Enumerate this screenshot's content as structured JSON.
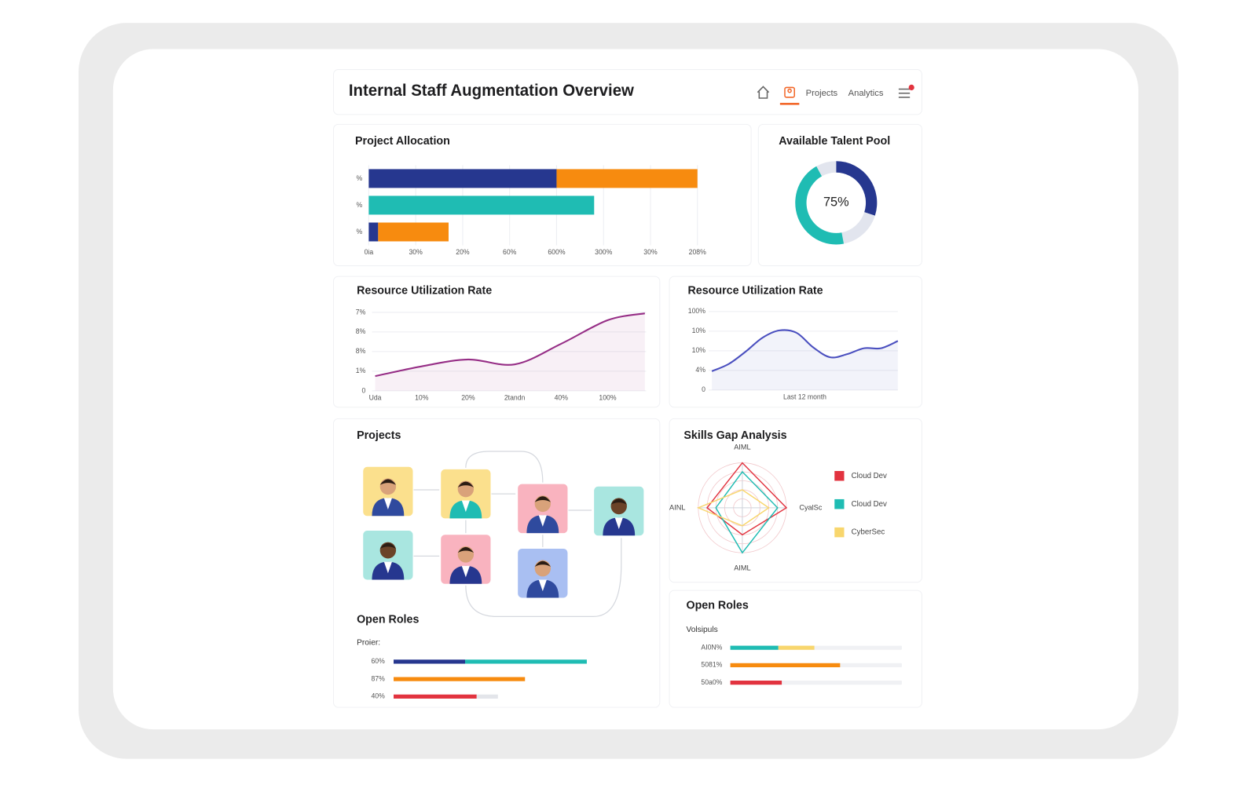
{
  "header": {
    "title": "Internal Staff Augmentation Overview",
    "nav": [
      "Projects",
      "Analytics"
    ]
  },
  "projects": {
    "title": "Projects"
  },
  "chart_data": [
    {
      "type": "bar",
      "orientation": "horizontal",
      "stacked": true,
      "title": "Project Allocation",
      "categories": [
        "%",
        "%",
        "%"
      ],
      "series": [
        {
          "color": "#26378f",
          "values": [
            40,
            null,
            2
          ]
        },
        {
          "color": "#1fbcb3",
          "values": [
            null,
            48,
            null
          ]
        },
        {
          "color": "#f78b0f",
          "values": [
            30,
            null,
            15
          ]
        }
      ],
      "xlim": [
        0,
        70
      ],
      "xticks": [
        {
          "value": 0,
          "label": "0ia"
        },
        {
          "value": 10,
          "label": "30%"
        },
        {
          "value": 20,
          "label": "20%"
        },
        {
          "value": 30,
          "label": "60%"
        },
        {
          "value": 40,
          "label": "600%"
        },
        {
          "value": 50,
          "label": "300%"
        },
        {
          "value": 60,
          "label": "30%"
        },
        {
          "value": 70,
          "label": "208%"
        }
      ],
      "grid": true
    },
    {
      "type": "donut",
      "title": "Available Talent Pool",
      "center_label": "75%",
      "values": [
        30,
        17,
        45,
        8
      ],
      "colors": [
        "#26378f",
        "#e2e5ee",
        "#1fbcb3",
        "#e2e5ee"
      ]
    },
    {
      "type": "line",
      "title": "Resource Utilization Rate",
      "x": [
        0,
        1,
        2,
        3,
        4,
        5,
        5.8
      ],
      "series": [
        {
          "color": "#962e86",
          "values": [
            0.75,
            1.25,
            1.6,
            1.35,
            2.4,
            3.6,
            3.95
          ]
        }
      ],
      "xlim": [
        0,
        6
      ],
      "xticks": [
        {
          "value": 0,
          "label": "Uda"
        },
        {
          "value": 1,
          "label": "10%"
        },
        {
          "value": 2,
          "label": "20%"
        },
        {
          "value": 3,
          "label": "2tandn"
        },
        {
          "value": 4,
          "label": "40%"
        },
        {
          "value": 5,
          "label": "100%"
        }
      ],
      "ylim": [
        0,
        4
      ],
      "yticks": [
        0,
        {
          "value": 1,
          "label": "1%"
        },
        {
          "value": 2,
          "label": "8%"
        },
        {
          "value": 3,
          "label": "8%"
        },
        {
          "value": 4,
          "label": "7%"
        }
      ],
      "grid": true,
      "area": true
    },
    {
      "type": "line",
      "title": "Resource Utilization Rate",
      "xlabel": "Last 12 month",
      "x": [
        0,
        1,
        2,
        3,
        4,
        5,
        6,
        7,
        8,
        9,
        10,
        11
      ],
      "series": [
        {
          "color": "#4a4fbf",
          "values": [
            0.96,
            1.33,
            1.96,
            2.67,
            3.04,
            2.92,
            2.17,
            1.67,
            1.83,
            2.13,
            2.13,
            2.5
          ]
        }
      ],
      "xlim": [
        0,
        11
      ],
      "ylim": [
        0,
        4
      ],
      "yticks": [
        0,
        {
          "value": 1,
          "label": "4%"
        },
        {
          "value": 2,
          "label": "10%"
        },
        {
          "value": 3,
          "label": "10%"
        },
        {
          "value": 4,
          "label": "100%"
        }
      ],
      "grid": true,
      "area": true
    },
    {
      "type": "radar",
      "title": "Skills Gap Analysis",
      "categories": [
        "AIML",
        "CyalSc",
        "AIML",
        "AINL"
      ],
      "series": [
        {
          "name": "Cloud Dev",
          "color": "#e2333f",
          "values": [
            5,
            5,
            3,
            4
          ]
        },
        {
          "name": "Cloud Dev",
          "color": "#1fbcb3",
          "values": [
            4,
            4,
            5,
            3
          ]
        },
        {
          "name": "CyberSec",
          "color": "#f8d66d",
          "values": [
            2,
            3,
            2,
            5
          ]
        }
      ],
      "rlim": [
        0,
        5
      ]
    },
    {
      "type": "bar",
      "orientation": "horizontal",
      "stacked": true,
      "title": "Open Roles",
      "subtitle": "Proier:",
      "categories": [
        "60%",
        "87%",
        "40%"
      ],
      "series": [
        {
          "color": "#26378f",
          "values": [
            37,
            null,
            null
          ]
        },
        {
          "color": "#1fbcb3",
          "values": [
            63,
            null,
            null
          ]
        },
        {
          "color": "#f78b0f",
          "values": [
            null,
            68,
            null
          ]
        },
        {
          "color": "#e2333f",
          "values": [
            null,
            null,
            43
          ]
        },
        {
          "color": "#e3e5ea",
          "values": [
            null,
            null,
            11
          ]
        }
      ],
      "xlim": [
        0,
        100
      ]
    },
    {
      "type": "bar",
      "orientation": "horizontal",
      "stacked": true,
      "title": "Open Roles",
      "subtitle": "Volsipuls",
      "categories": [
        "AI0N%",
        "5081%",
        "50a0%"
      ],
      "series": [
        {
          "color": "#1fbcb3",
          "values": [
            28,
            null,
            null
          ]
        },
        {
          "color": "#f8d66d",
          "values": [
            21,
            null,
            null
          ]
        },
        {
          "color": "#f78b0f",
          "values": [
            null,
            64,
            null
          ]
        },
        {
          "color": "#e2333f",
          "values": [
            null,
            null,
            30
          ]
        }
      ],
      "xlim": [
        0,
        100
      ],
      "track": true
    }
  ]
}
